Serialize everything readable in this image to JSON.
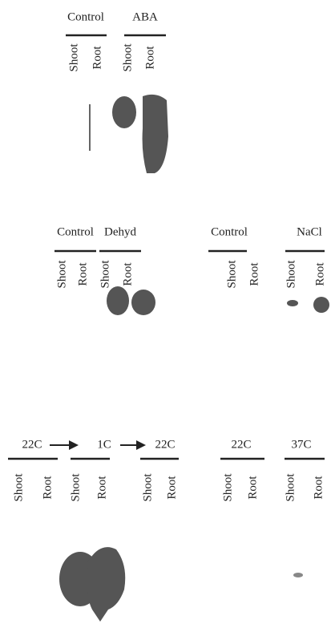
{
  "panels": [
    {
      "groups": [
        {
          "label": "Control",
          "lanes": [
            "Shoot",
            "Root"
          ]
        },
        {
          "label": "ABA",
          "lanes": [
            "Shoot",
            "Root"
          ]
        }
      ]
    },
    {
      "groups": [
        {
          "label": "Control",
          "lanes": [
            "Shoot",
            "Root"
          ]
        },
        {
          "label": "Dehyd",
          "lanes": [
            "Shoot",
            "Root"
          ]
        }
      ]
    },
    {
      "groups": [
        {
          "label": "Control",
          "lanes": [
            "Shoot",
            "Root"
          ]
        },
        {
          "label": "NaCl",
          "lanes": [
            "Shoot",
            "Root"
          ]
        }
      ]
    },
    {
      "groups": [
        {
          "label": "22C",
          "lanes": [
            "Shoot",
            "Root"
          ]
        },
        {
          "label": "1C",
          "lanes": [
            "Shoot",
            "Root"
          ]
        },
        {
          "label": "22C",
          "lanes": [
            "Shoot",
            "Root"
          ]
        }
      ]
    },
    {
      "groups": [
        {
          "label": "22C",
          "lanes": [
            "Shoot",
            "Root"
          ]
        },
        {
          "label": "37C",
          "lanes": [
            "Shoot",
            "Root"
          ]
        }
      ]
    }
  ]
}
